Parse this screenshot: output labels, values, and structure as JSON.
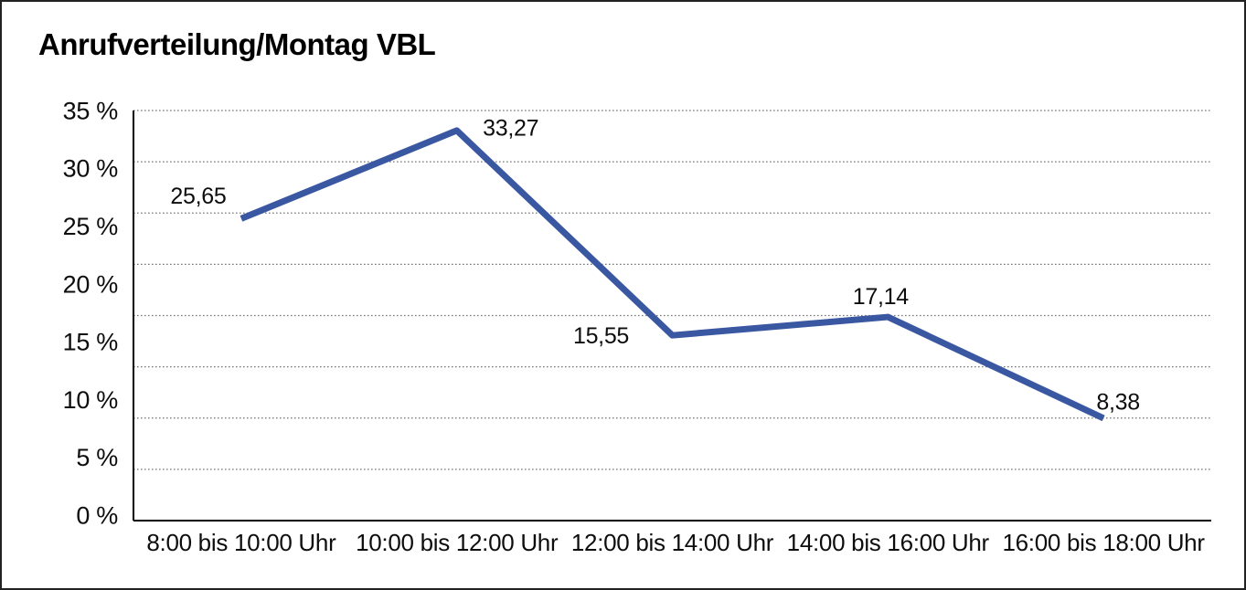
{
  "chart_data": {
    "type": "line",
    "title": "Anrufverteilung/Montag VBL",
    "categories": [
      "8:00 bis 10:00 Uhr",
      "10:00 bis 12:00 Uhr",
      "12:00 bis 14:00 Uhr",
      "14:00 bis 16:00 Uhr",
      "16:00 bis 18:00 Uhr"
    ],
    "series": [
      {
        "values": [
          25.65,
          33.27,
          15.55,
          17.14,
          8.38
        ],
        "data_labels": [
          "25,65",
          "33,27",
          "15,55",
          "17,14",
          "8,38"
        ],
        "color": "#3a57a2"
      }
    ],
    "xlabel": "",
    "ylabel": "",
    "ylim": [
      0,
      35
    ],
    "y_tick_labels": [
      "0 %",
      "5 %",
      "10 %",
      "15 %",
      "20 %",
      "25 %",
      "30 %",
      "35 %"
    ],
    "grid": "horizontal-dotted",
    "legend": "none"
  }
}
